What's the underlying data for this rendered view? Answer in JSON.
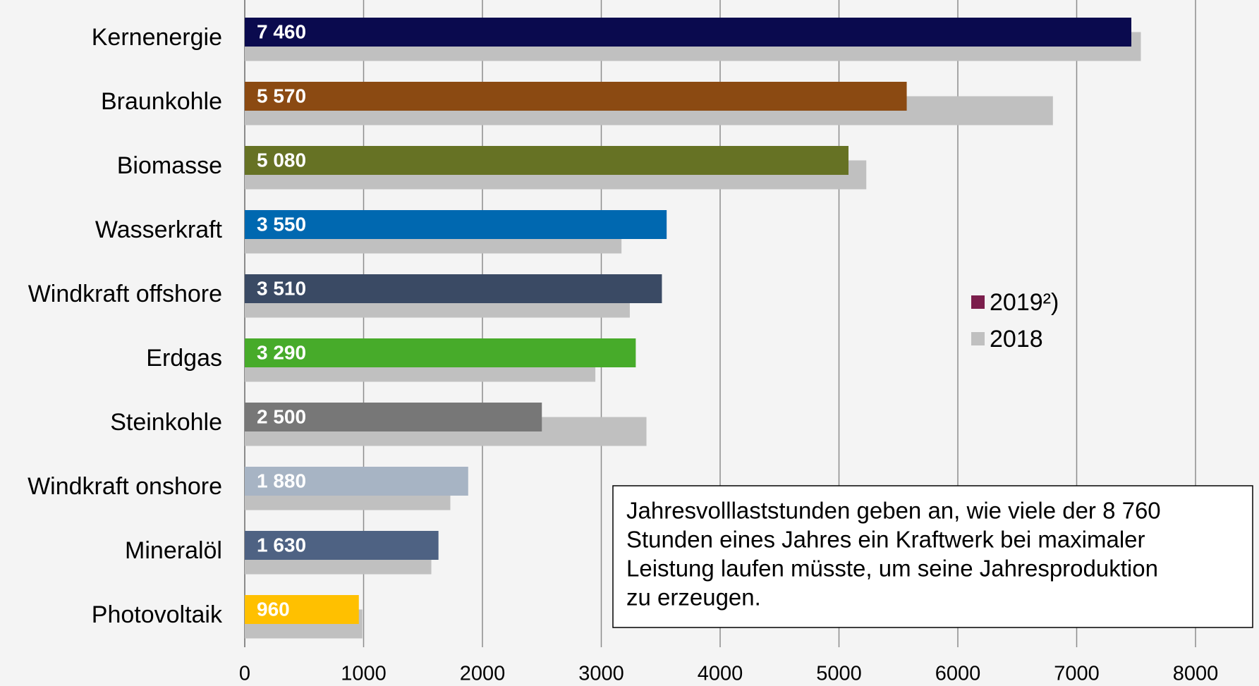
{
  "chart_data": {
    "type": "barh",
    "categories": [
      "Kernenergie",
      "Braunkohle",
      "Biomasse",
      "Wasserkraft",
      "Windkraft offshore",
      "Erdgas",
      "Steinkohle",
      "Windkraft onshore",
      "Mineralöl",
      "Photovoltaik"
    ],
    "series": [
      {
        "name": "2018",
        "color": "#c0c0c0",
        "values": [
          7540,
          6800,
          5230,
          3170,
          3240,
          2950,
          3380,
          1730,
          1570,
          990
        ]
      },
      {
        "name": "2019²)",
        "color": "#7b1e4c",
        "colors": [
          "#0a0a4e",
          "#8b4a12",
          "#667224",
          "#0068b0",
          "#3a4a64",
          "#47ab2a",
          "#777777",
          "#a7b4c4",
          "#4e6283",
          "#ffc000"
        ],
        "values": [
          7460,
          5570,
          5080,
          3550,
          3510,
          3290,
          2500,
          1880,
          1630,
          960
        ],
        "value_labels": [
          "7 460",
          "5 570",
          "5 080",
          "3 550",
          "3 510",
          "3 290",
          "2 500",
          "1 880",
          "1 630",
          "960"
        ]
      }
    ],
    "xlim": [
      0,
      8000
    ],
    "xticks": [
      0,
      1000,
      2000,
      3000,
      4000,
      5000,
      6000,
      7000,
      8000
    ],
    "grid": true,
    "legend": "right",
    "annotation": [
      "Jahresvolllaststunden geben an, wie viele der 8 760",
      "Stunden eines Jahres ein Kraftwerk bei maximaler",
      "Leistung laufen müsste, um seine Jahresproduktion",
      "zu erzeugen."
    ]
  }
}
